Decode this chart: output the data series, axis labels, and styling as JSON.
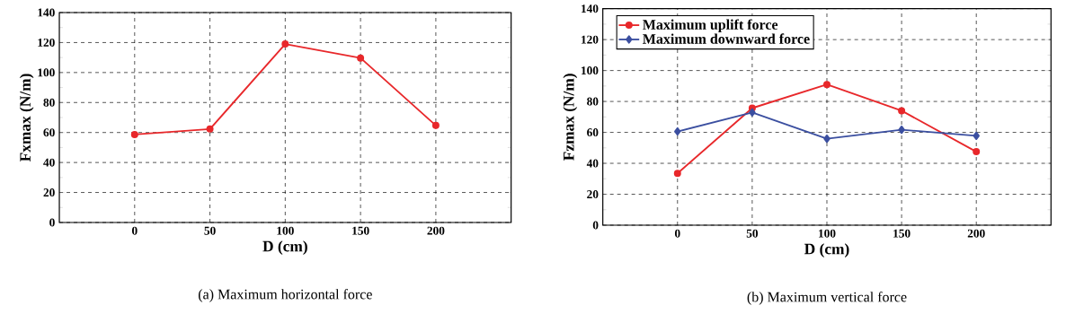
{
  "chart_data": [
    {
      "type": "line",
      "xlabel": "D (cm)",
      "ylabel": "Fxmax (N/m)",
      "x": [
        0,
        50,
        100,
        150,
        200
      ],
      "series": [
        {
          "color": "#e8282b",
          "values": [
            58.7,
            62.3,
            119,
            109.7,
            64.7
          ],
          "marker": "circle"
        }
      ],
      "xlim": [
        -50,
        250
      ],
      "ylim": [
        0,
        140
      ],
      "xticks": [
        0,
        50,
        100,
        150,
        200
      ],
      "yticks": [
        0,
        20,
        40,
        60,
        80,
        100,
        120,
        140
      ],
      "grid": true,
      "legend": false,
      "line_style": "solid",
      "annotations": [
        "(a) Maximum horizontal force"
      ]
    },
    {
      "type": "line",
      "xlabel": "D (cm)",
      "ylabel": "Fzmax (N/m)",
      "x": [
        0,
        50,
        100,
        150,
        200
      ],
      "series": [
        {
          "name": "Maximum uplift force",
          "color": "#e8282b",
          "values": [
            33.5,
            75.7,
            91,
            74,
            47.5
          ],
          "marker": "circle"
        },
        {
          "name": "Maximum downward force",
          "color": "#3b4fa0",
          "values": [
            60.6,
            72.9,
            55.9,
            61.7,
            57.8
          ],
          "marker": "diamond"
        }
      ],
      "xlim": [
        -50,
        250
      ],
      "ylim": [
        0,
        140
      ],
      "xticks": [
        0,
        50,
        100,
        150,
        200
      ],
      "yticks": [
        0,
        20,
        40,
        60,
        80,
        100,
        120,
        140
      ],
      "grid": true,
      "legend": "top left",
      "line_style": "solid",
      "annotations": [
        "(b) Maximum vertical force"
      ]
    }
  ]
}
